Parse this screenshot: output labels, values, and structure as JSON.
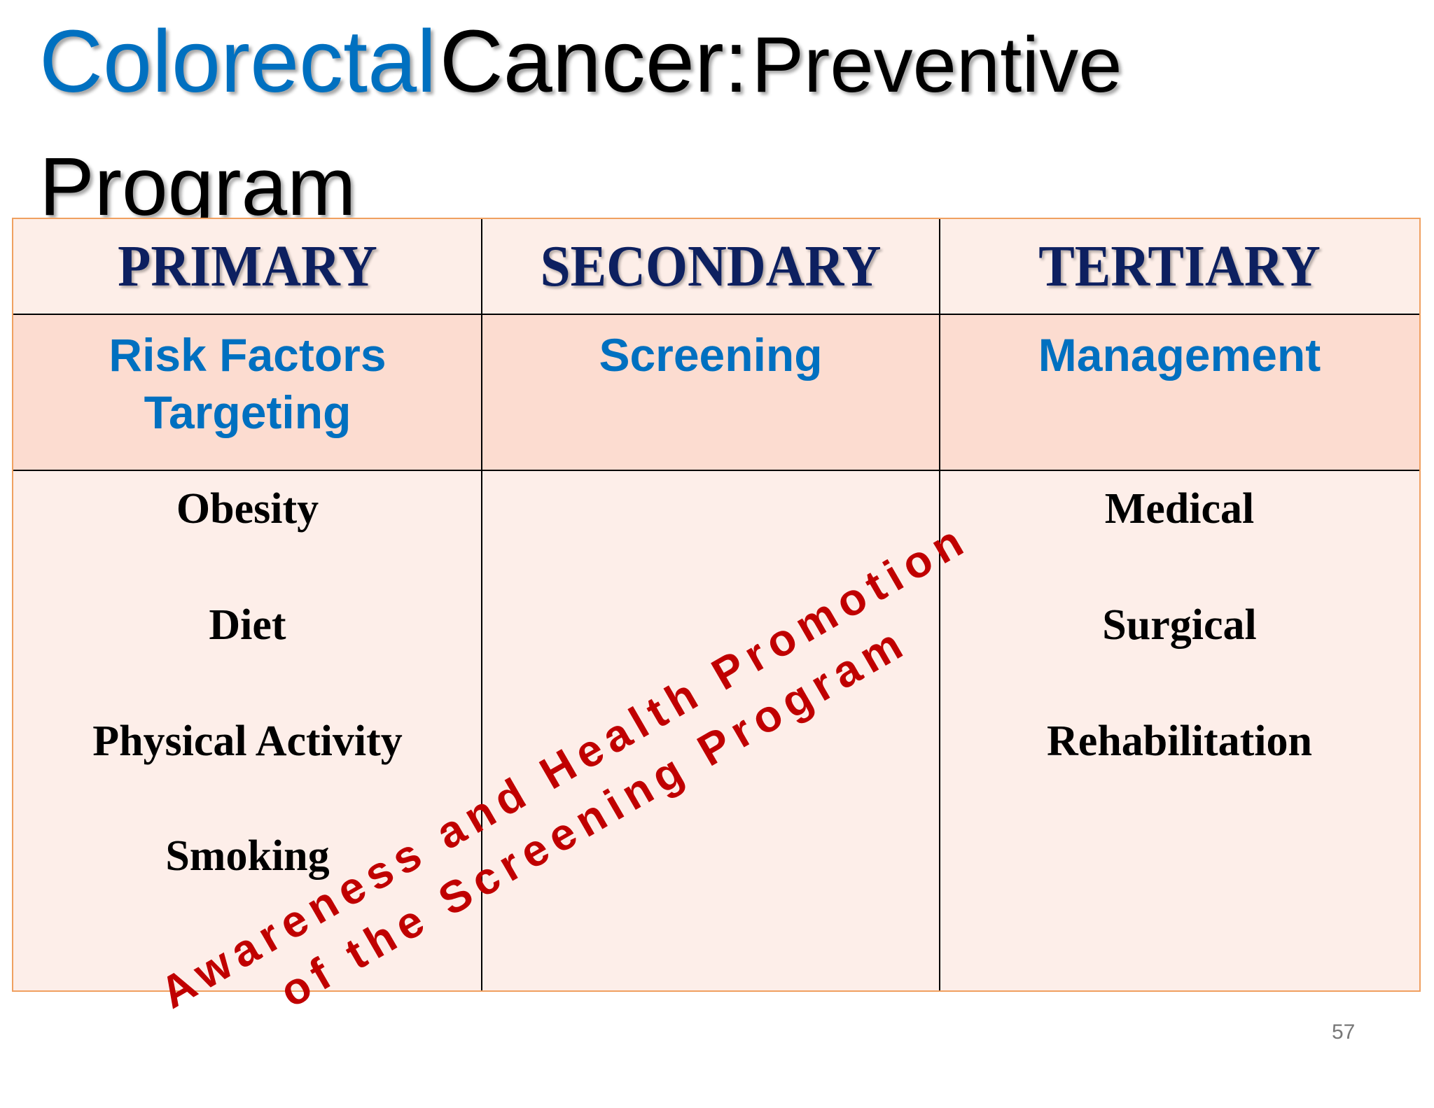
{
  "title": {
    "word1": "Colorectal",
    "word2": "Cancer:",
    "word3": "Preventive",
    "line2": "Program"
  },
  "table": {
    "columns": [
      {
        "header": "PRIMARY",
        "subheader_lines": [
          "Risk Factors",
          "Targeting"
        ],
        "items": [
          "Obesity",
          "Diet",
          "Physical Activity",
          "Smoking"
        ]
      },
      {
        "header": "SECONDARY",
        "subheader_lines": [
          "Screening"
        ],
        "items": []
      },
      {
        "header": "TERTIARY",
        "subheader_lines": [
          "Management"
        ],
        "items": [
          "Medical",
          "Surgical",
          "Rehabilitation"
        ]
      }
    ]
  },
  "overlay": {
    "line1": "Awareness and Health Promotion",
    "line2": "of the Screening Program"
  },
  "page_number": "57",
  "colors": {
    "title_accent": "#0070c0",
    "header_text": "#0d2060",
    "overlay": "#c00000",
    "border": "#f0a060"
  }
}
